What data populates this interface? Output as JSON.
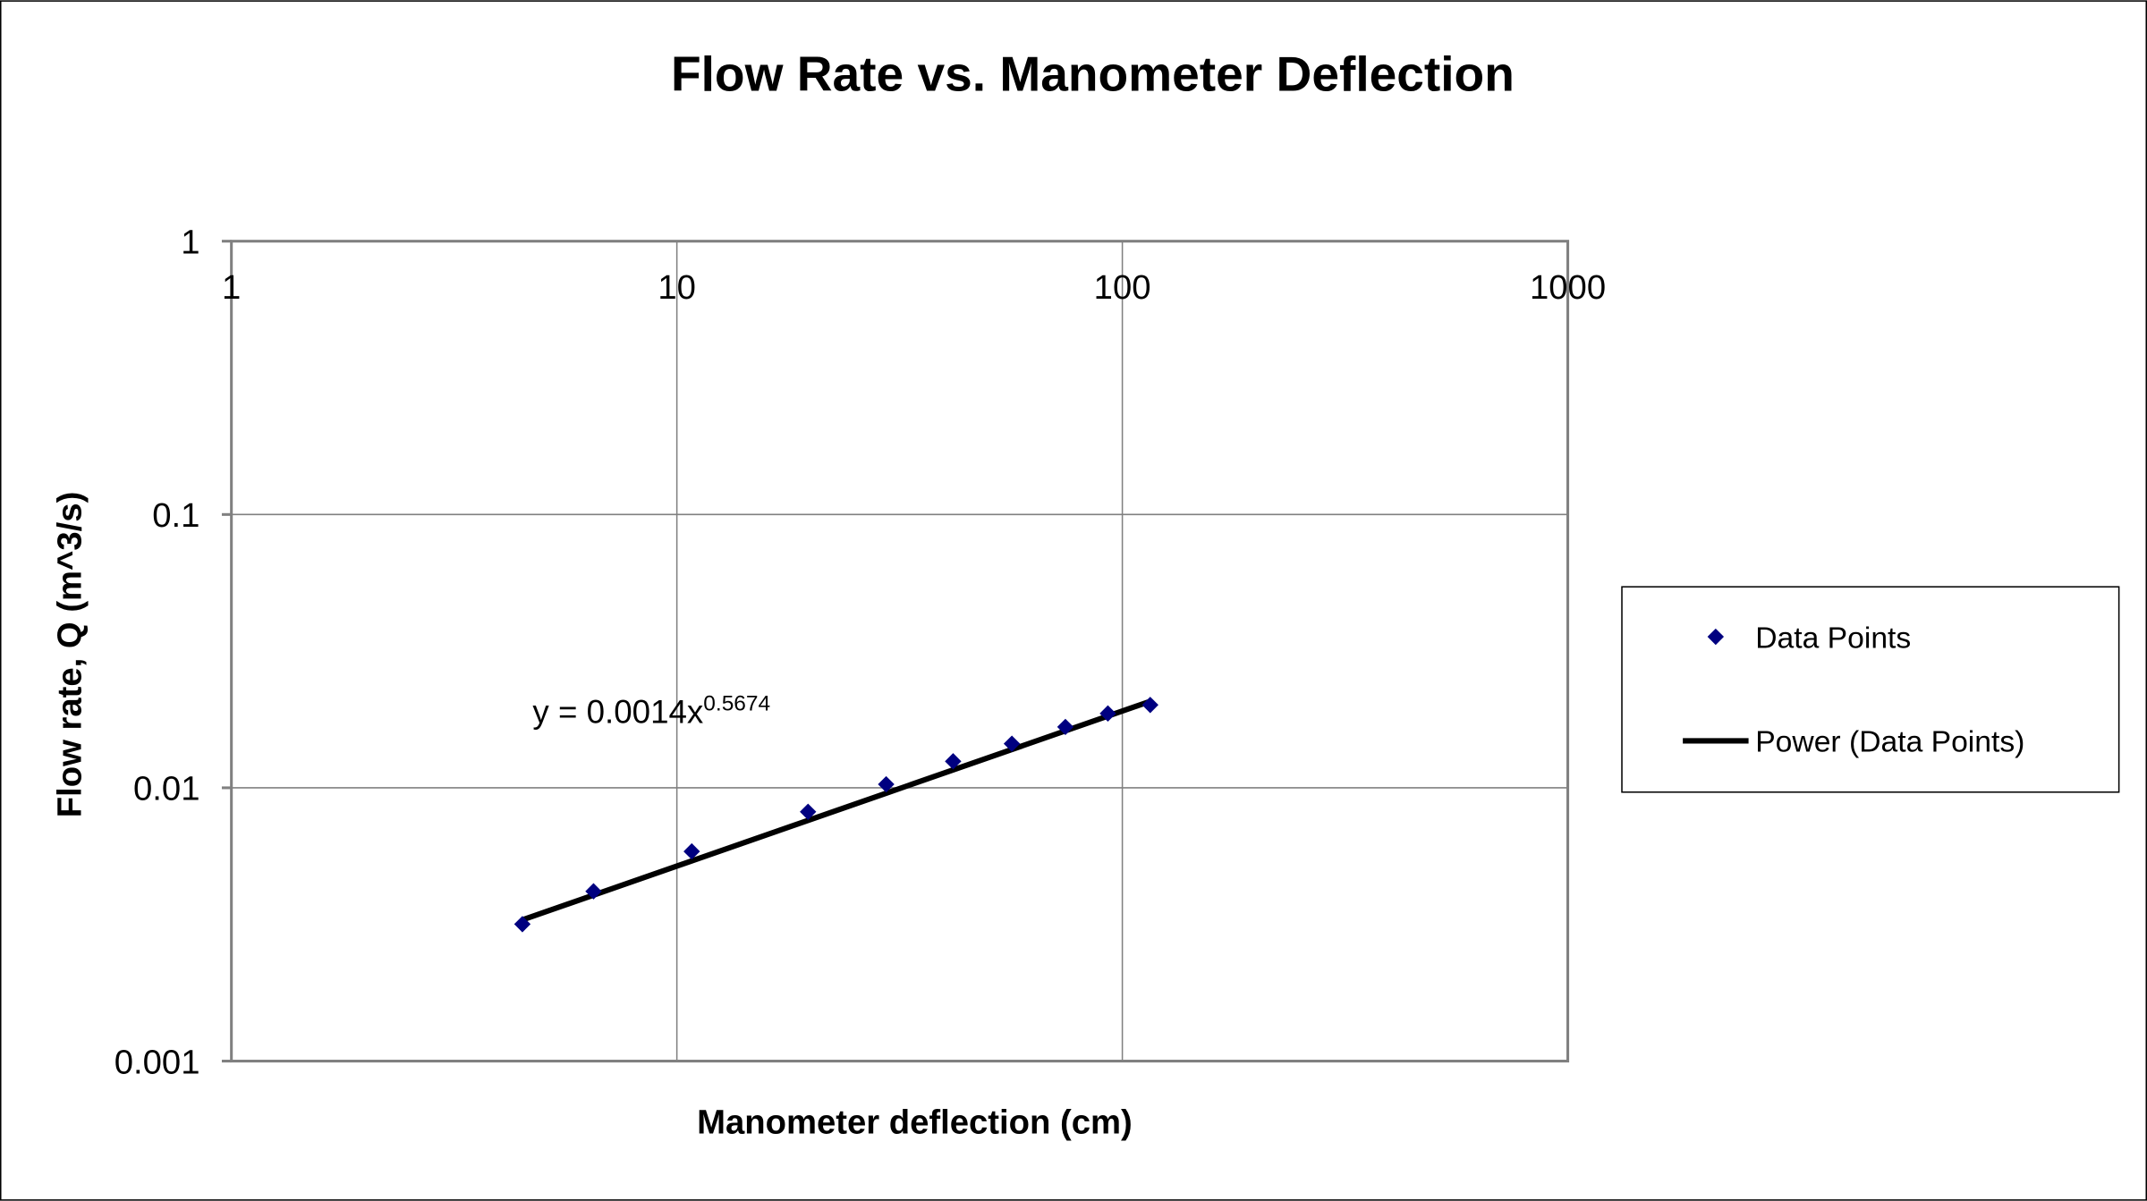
{
  "chart_data": {
    "type": "scatter",
    "title": "Flow Rate vs. Manometer Deflection",
    "xlabel": "Manometer deflection (cm)",
    "ylabel": "Flow rate, Q (m^3/s)",
    "x_scale": "log",
    "y_scale": "log",
    "xlim": [
      1,
      1000
    ],
    "ylim": [
      0.001,
      1
    ],
    "x_ticks": [
      "1",
      "10",
      "100",
      "1000"
    ],
    "y_ticks": [
      "1",
      "0.1",
      "0.01",
      "0.001"
    ],
    "grid": true,
    "legend_position": "right",
    "series": [
      {
        "name": "Data Points",
        "marker": "diamond",
        "color": "#000080",
        "x": [
          4.5,
          6.5,
          10.8,
          19.7,
          29.5,
          41.7,
          56.5,
          74.5,
          92.8,
          115.5
        ],
        "y": [
          0.00317,
          0.00418,
          0.00585,
          0.00817,
          0.0103,
          0.0125,
          0.0145,
          0.0167,
          0.0187,
          0.0201
        ]
      }
    ],
    "trendline": {
      "name": "Power (Data Points)",
      "type": "power",
      "coefficient": 0.0014,
      "exponent": 0.5674,
      "equation_base": "y = 0.0014x",
      "equation_exponent": "0.5674",
      "color": "#000000"
    }
  }
}
